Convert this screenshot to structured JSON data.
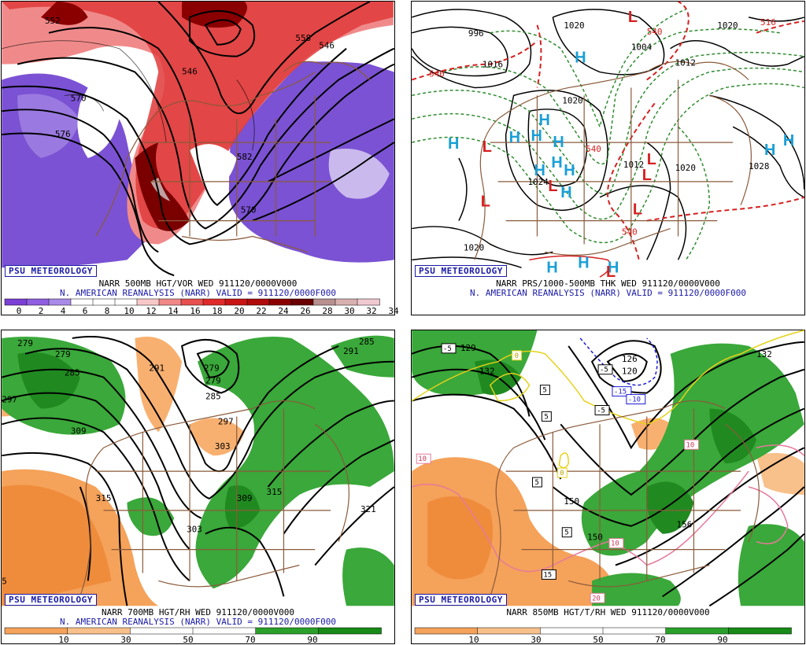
{
  "brand": "PSU METEOROLOGY",
  "panels": [
    {
      "caption_line1": "NARR 500MB HGT/VOR WED 911120/0000V000",
      "caption_line2": "N. AMERICAN REANALYSIS (NARR) VALID = 911120/0000F000",
      "contour_labels": [
        "552",
        "570",
        "576",
        "546",
        "570",
        "582",
        "558",
        "546"
      ],
      "colorbar": {
        "ticks": [
          "0",
          "2",
          "4",
          "6",
          "8",
          "10",
          "12",
          "14",
          "16",
          "18",
          "20",
          "22",
          "24",
          "26",
          "28",
          "30",
          "32",
          "34"
        ],
        "colors": [
          "#7b3fd6",
          "#8f5ee0",
          "#a98ae8",
          "#ffffff",
          "#ffffff",
          "#ffffff",
          "#f8c8c8",
          "#f08888",
          "#e84f4f",
          "#e02a2a",
          "#c81414",
          "#b00a0a",
          "#8a0000",
          "#6a0000",
          "#b89090",
          "#d8b0b0",
          "#f0c8d0"
        ]
      }
    },
    {
      "caption_line1": "NARR PRS/1000-500MB THK WED 911120/0000V000",
      "caption_line2": "N. AMERICAN REANALYSIS (NARR) VALID = 911120/0000F000",
      "pressure_labels": [
        "996",
        "1020",
        "1016",
        "1004",
        "1012",
        "1020",
        "1024",
        "1012",
        "1020",
        "1028",
        "1020",
        "1020"
      ],
      "thickness_labels": [
        "540",
        "540",
        "516",
        "540",
        "540"
      ],
      "highs": [
        "H",
        "H",
        "H",
        "H",
        "H",
        "H",
        "H",
        "H",
        "H",
        "H",
        "H",
        "H",
        "H",
        "H",
        "H"
      ],
      "lows": [
        "L",
        "L",
        "L",
        "L",
        "L",
        "L",
        "L",
        "L"
      ]
    },
    {
      "caption_line1": "NARR 700MB HGT/RH WED 911120/0000V000",
      "caption_line2": "N. AMERICAN REANALYSIS (NARR) VALID = 911120/0000F000",
      "contour_labels": [
        "279",
        "279",
        "285",
        "297",
        "309",
        "291",
        "279",
        "279",
        "285",
        "297",
        "303",
        "315",
        "309",
        "315",
        "303",
        "321",
        "291",
        "285",
        "5"
      ],
      "colorbar": {
        "ticks": [
          "10",
          "30",
          "50",
          "70",
          "90"
        ],
        "colors": [
          "#f5a25a",
          "#f8c08a",
          "#ffffff",
          "#ffffff",
          "#2aa02a",
          "#178a17"
        ]
      }
    },
    {
      "caption_line1": "NARR 850MB HGT/T/RH WED 911120/0000V000",
      "caption_line2": "",
      "height_labels": [
        "129",
        "132",
        "126",
        "120",
        "150",
        "156",
        "150",
        "132"
      ],
      "temp_boxes": [
        "-5",
        "5",
        "5",
        "-5",
        "-15",
        "-10",
        "0",
        "0",
        "5",
        "5",
        "10",
        "10",
        "10",
        "15",
        "20",
        "-5"
      ],
      "colorbar": {
        "ticks": [
          "10",
          "30",
          "50",
          "70",
          "90"
        ],
        "colors": [
          "#f5a25a",
          "#f8c08a",
          "#ffffff",
          "#ffffff",
          "#2aa02a",
          "#178a17"
        ]
      }
    }
  ]
}
